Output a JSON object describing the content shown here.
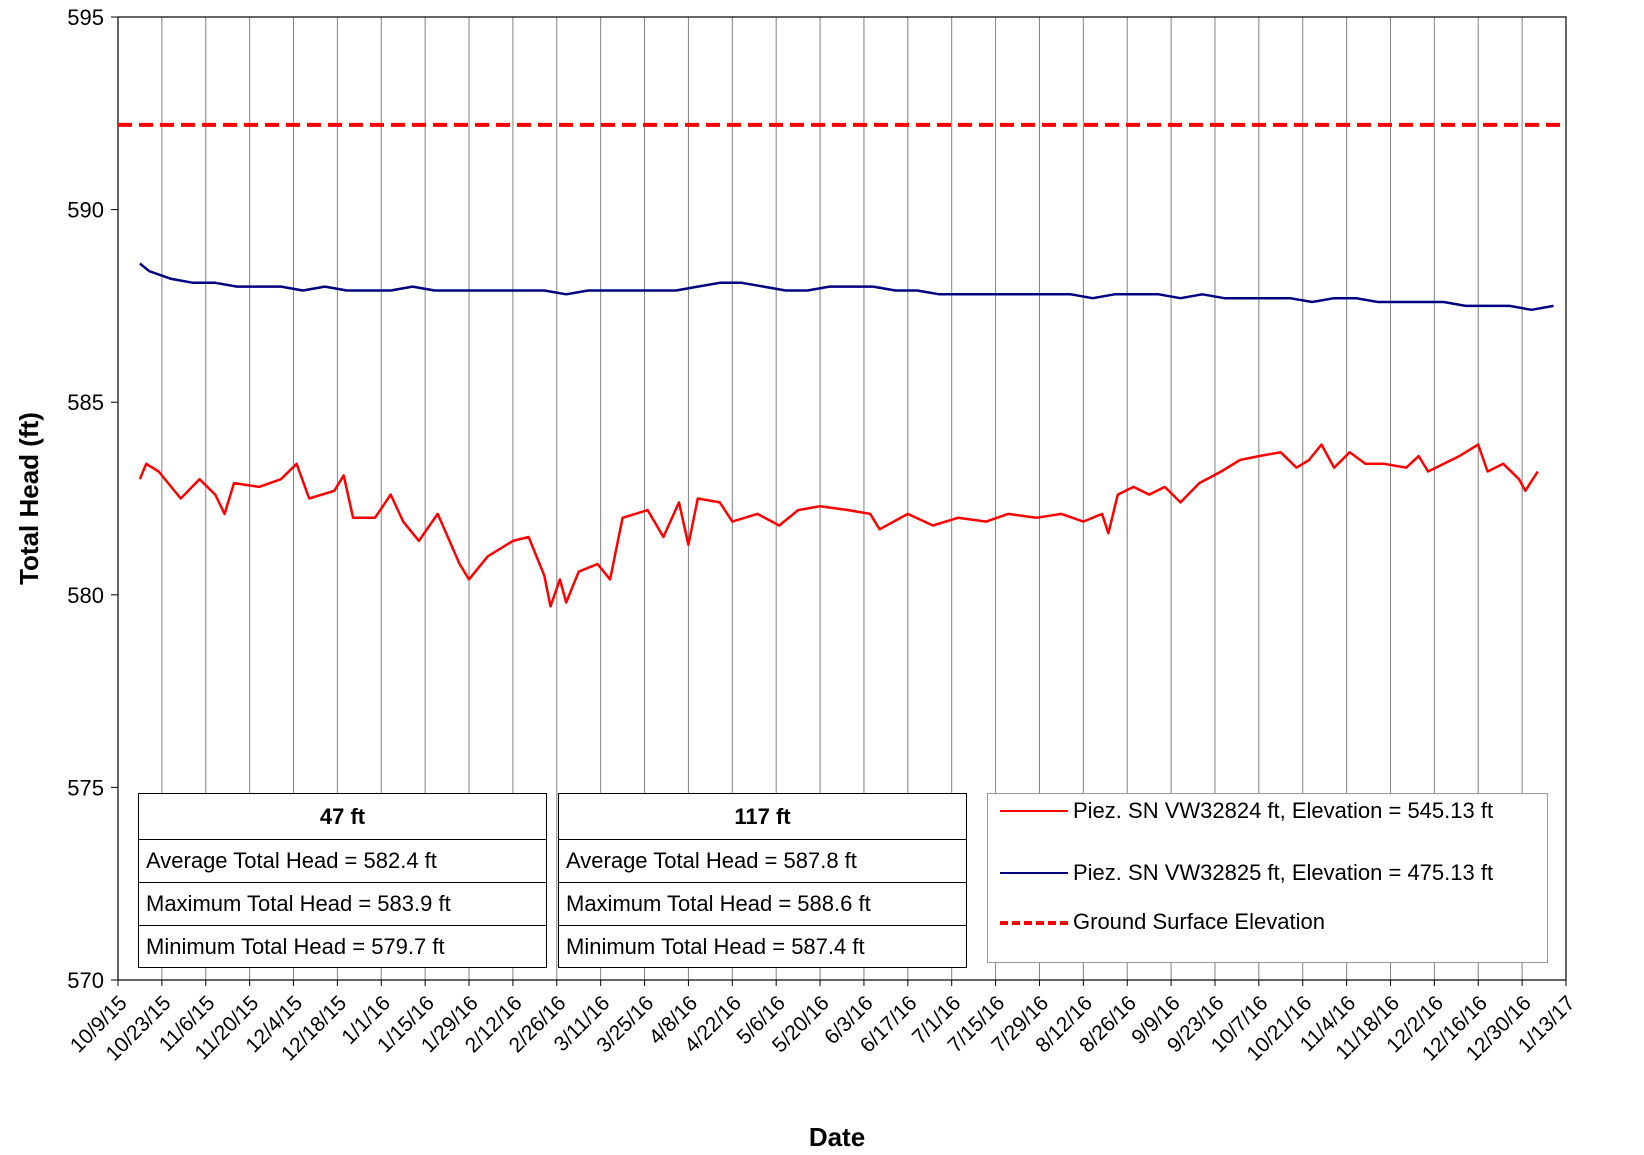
{
  "chart_data": {
    "type": "line",
    "xlabel": "Date",
    "ylabel": "Total Head (ft)",
    "xlim": [
      "10/9/15",
      "1/13/17"
    ],
    "xticks": [
      "10/9/15",
      "10/23/15",
      "11/6/15",
      "11/20/15",
      "12/4/15",
      "12/18/15",
      "1/1/16",
      "1/15/16",
      "1/29/16",
      "2/12/16",
      "2/26/16",
      "3/11/16",
      "3/25/16",
      "4/8/16",
      "4/22/16",
      "5/6/16",
      "5/20/16",
      "6/3/16",
      "6/17/16",
      "7/1/16",
      "7/15/16",
      "7/29/16",
      "8/12/16",
      "8/26/16",
      "9/9/16",
      "9/23/16",
      "10/7/16",
      "10/21/16",
      "11/4/16",
      "11/18/16",
      "12/2/16",
      "12/16/16",
      "12/30/16",
      "1/13/17"
    ],
    "ylim": [
      570,
      595
    ],
    "yticks": [
      570,
      575,
      580,
      585,
      590,
      595
    ],
    "grid": "x",
    "series": [
      {
        "name": "Piez. SN VW32824 ft, Elevation = 545.13 ft",
        "color": "#ff0000",
        "x": [
          "10/16/15",
          "10/18/15",
          "10/22/15",
          "10/29/15",
          "11/4/15",
          "11/9/15",
          "11/12/15",
          "11/15/15",
          "11/23/15",
          "11/30/15",
          "12/5/15",
          "12/9/15",
          "12/17/15",
          "12/20/15",
          "12/23/15",
          "12/30/15",
          "1/4/16",
          "1/8/16",
          "1/13/16",
          "1/19/16",
          "1/26/16",
          "1/29/16",
          "2/4/16",
          "2/12/16",
          "2/17/16",
          "2/22/16",
          "2/24/16",
          "2/27/16",
          "2/29/16",
          "3/4/16",
          "3/10/16",
          "3/14/16",
          "3/18/16",
          "3/26/16",
          "3/31/16",
          "4/5/16",
          "4/8/16",
          "4/11/16",
          "4/18/16",
          "4/22/16",
          "4/30/16",
          "5/7/16",
          "5/13/16",
          "5/20/16",
          "5/29/16",
          "6/5/16",
          "6/8/16",
          "6/17/16",
          "6/25/16",
          "7/3/16",
          "7/12/16",
          "7/19/16",
          "7/28/16",
          "8/5/16",
          "8/12/16",
          "8/18/16",
          "8/20/16",
          "8/23/16",
          "8/28/16",
          "9/2/16",
          "9/7/16",
          "9/12/16",
          "9/18/16",
          "9/25/16",
          "10/1/16",
          "10/7/16",
          "10/14/16",
          "10/19/16",
          "10/23/16",
          "10/27/16",
          "10/31/16",
          "11/5/16",
          "11/10/16",
          "11/16/16",
          "11/23/16",
          "11/27/16",
          "11/30/16",
          "12/5/16",
          "12/10/16",
          "12/16/16",
          "12/19/16",
          "12/24/16",
          "12/29/16",
          "12/31/16",
          "1/4/17"
        ],
        "values": [
          583.0,
          583.4,
          583.2,
          582.5,
          583.0,
          582.6,
          582.1,
          582.9,
          582.8,
          583.0,
          583.4,
          582.5,
          582.7,
          583.1,
          582.0,
          582.0,
          582.6,
          581.9,
          581.4,
          582.1,
          580.8,
          580.4,
          581.0,
          581.4,
          581.5,
          580.5,
          579.7,
          580.4,
          579.8,
          580.6,
          580.8,
          580.4,
          582.0,
          582.2,
          581.5,
          582.4,
          581.3,
          582.5,
          582.4,
          581.9,
          582.1,
          581.8,
          582.2,
          582.3,
          582.2,
          582.1,
          581.7,
          582.1,
          581.8,
          582.0,
          581.9,
          582.1,
          582.0,
          582.1,
          581.9,
          582.1,
          581.6,
          582.6,
          582.8,
          582.6,
          582.8,
          582.4,
          582.9,
          583.2,
          583.5,
          583.6,
          583.7,
          583.3,
          583.5,
          583.9,
          583.3,
          583.7,
          583.4,
          583.4,
          583.3,
          583.6,
          583.2,
          583.4,
          583.6,
          583.9,
          583.2,
          583.4,
          583.0,
          582.7,
          583.2
        ]
      },
      {
        "name": "Piez. SN VW32825 ft, Elevation = 475.13 ft",
        "color": "#000080",
        "x": [
          "10/16/15",
          "10/19/15",
          "10/26/15",
          "11/2/15",
          "11/9/15",
          "11/16/15",
          "11/23/15",
          "11/30/15",
          "12/7/15",
          "12/14/15",
          "12/21/15",
          "12/28/15",
          "1/4/16",
          "1/11/16",
          "1/18/16",
          "1/25/16",
          "2/1/16",
          "2/8/16",
          "2/15/16",
          "2/22/16",
          "2/29/16",
          "3/7/16",
          "3/14/16",
          "3/21/16",
          "3/28/16",
          "4/4/16",
          "4/11/16",
          "4/18/16",
          "4/25/16",
          "5/2/16",
          "5/9/16",
          "5/16/16",
          "5/23/16",
          "5/30/16",
          "6/6/16",
          "6/13/16",
          "6/20/16",
          "6/27/16",
          "7/4/16",
          "7/11/16",
          "7/18/16",
          "7/25/16",
          "8/1/16",
          "8/8/16",
          "8/15/16",
          "8/22/16",
          "8/29/16",
          "9/5/16",
          "9/12/16",
          "9/19/16",
          "9/26/16",
          "10/3/16",
          "10/10/16",
          "10/17/16",
          "10/24/16",
          "10/31/16",
          "11/7/16",
          "11/14/16",
          "11/21/16",
          "11/28/16",
          "12/5/16",
          "12/12/16",
          "12/19/16",
          "12/26/16",
          "1/2/17",
          "1/9/17"
        ],
        "values": [
          588.6,
          588.4,
          588.2,
          588.1,
          588.1,
          588.0,
          588.0,
          588.0,
          587.9,
          588.0,
          587.9,
          587.9,
          587.9,
          588.0,
          587.9,
          587.9,
          587.9,
          587.9,
          587.9,
          587.9,
          587.8,
          587.9,
          587.9,
          587.9,
          587.9,
          587.9,
          588.0,
          588.1,
          588.1,
          588.0,
          587.9,
          587.9,
          588.0,
          588.0,
          588.0,
          587.9,
          587.9,
          587.8,
          587.8,
          587.8,
          587.8,
          587.8,
          587.8,
          587.8,
          587.7,
          587.8,
          587.8,
          587.8,
          587.7,
          587.8,
          587.7,
          587.7,
          587.7,
          587.7,
          587.6,
          587.7,
          587.7,
          587.6,
          587.6,
          587.6,
          587.6,
          587.5,
          587.5,
          587.5,
          587.4,
          587.5
        ]
      },
      {
        "name": "Ground Surface Elevation",
        "color": "#ff0000",
        "dashed": true,
        "y": 592.2
      }
    ],
    "tables": [
      {
        "title": "47 ft",
        "rows": [
          "Average Total Head = 582.4 ft",
          "Maximum Total Head = 583.9 ft",
          "Minimum Total Head = 579.7 ft"
        ]
      },
      {
        "title": "117 ft",
        "rows": [
          "Average Total Head = 587.8 ft",
          "Maximum Total Head = 588.6 ft",
          "Minimum Total Head = 587.4 ft"
        ]
      }
    ]
  }
}
